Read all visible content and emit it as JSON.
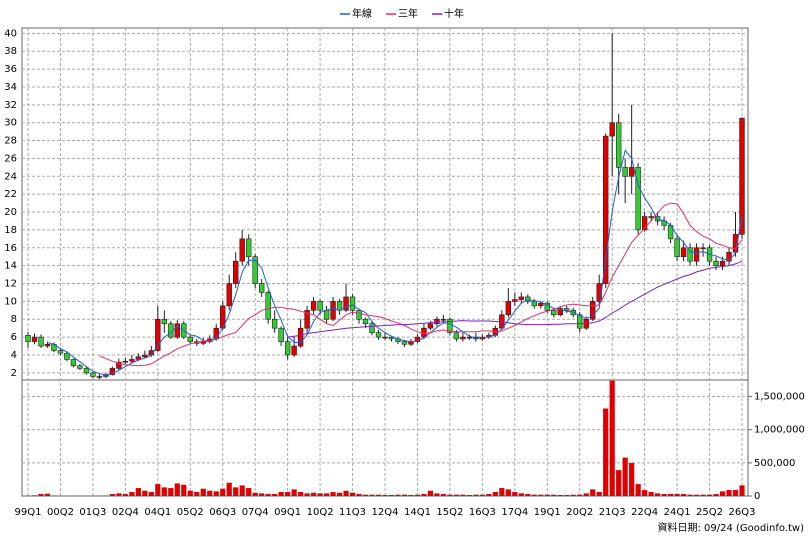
{
  "chart_data": {
    "type": "candlestick",
    "legend_position": "top",
    "categories": [
      "99Q1",
      null,
      null,
      null,
      null,
      "00Q2",
      null,
      null,
      null,
      null,
      "01Q3",
      null,
      null,
      null,
      null,
      "02Q4",
      null,
      null,
      null,
      null,
      "04Q1",
      null,
      null,
      null,
      null,
      "05Q2",
      null,
      null,
      null,
      null,
      "06Q3",
      null,
      null,
      null,
      null,
      "07Q4",
      null,
      null,
      null,
      null,
      "09Q1",
      null,
      null,
      null,
      null,
      "10Q2",
      null,
      null,
      null,
      null,
      "11Q3",
      null,
      null,
      null,
      null,
      "12Q4",
      null,
      null,
      null,
      null,
      "14Q1",
      null,
      null,
      null,
      null,
      "15Q2",
      null,
      null,
      null,
      null,
      "16Q3",
      null,
      null,
      null,
      null,
      "17Q4",
      null,
      null,
      null,
      null,
      "19Q1",
      null,
      null,
      null,
      null,
      "20Q2",
      null,
      null,
      null,
      null,
      "21Q3",
      null,
      null,
      null,
      null,
      "22Q4",
      null,
      null,
      null,
      null,
      "24Q1",
      null,
      null,
      null,
      null,
      "25Q2",
      null,
      null,
      null,
      null,
      "26Q3"
    ],
    "open": [
      6.2,
      5.5,
      6,
      5,
      5.2,
      4.5,
      4.2,
      3.5,
      2.8,
      2.5,
      2,
      1.6,
      1.6,
      1.8,
      2.5,
      3.2,
      3.3,
      3.5,
      3.8,
      4,
      4.5,
      8,
      7.5,
      6,
      7.5,
      6,
      5.5,
      5.3,
      5.5,
      5.8,
      7,
      9.5,
      12,
      14.5,
      17,
      15,
      12,
      11,
      8,
      7,
      5.5,
      4,
      5,
      7,
      9,
      10,
      9,
      8,
      10,
      9,
      10.5,
      9,
      8,
      7.5,
      6.5,
      6,
      6,
      5.8,
      5.5,
      5.2,
      5.5,
      6,
      7,
      7.5,
      8,
      8,
      6.5,
      5.8,
      6,
      6,
      5.8,
      6,
      6.2,
      7,
      8.5,
      10,
      10.2,
      10.5,
      10,
      9.5,
      9.8,
      9,
      8.5,
      9.2,
      9,
      8.5,
      7,
      8,
      10,
      12,
      28.5,
      30,
      25,
      24,
      25,
      18,
      19.5,
      19.5,
      19,
      18.5,
      17,
      15,
      16,
      14.5,
      16,
      16,
      14.5,
      14,
      14.5,
      15.5,
      17.5
    ],
    "high": [
      6.6,
      6.4,
      6.3,
      5.5,
      5.4,
      4.8,
      4.4,
      3.6,
      3,
      2.7,
      2.1,
      1.9,
      2,
      2.7,
      3.6,
      3.7,
      4,
      4.2,
      4.5,
      5,
      9.5,
      9,
      7.8,
      7.9,
      7.8,
      6.2,
      5.8,
      5.9,
      6.2,
      7.5,
      10,
      13,
      15.5,
      18,
      17.5,
      15.3,
      12.5,
      11.2,
      9,
      7.2,
      6,
      6,
      8,
      9.5,
      10.5,
      10.2,
      9.5,
      10.5,
      10.3,
      12,
      10.8,
      9.2,
      8.2,
      7.8,
      6.8,
      6.5,
      6.1,
      6,
      5.7,
      5.8,
      6.3,
      7.5,
      7.8,
      8.3,
      8.5,
      8.2,
      6.8,
      6.5,
      6.3,
      6.5,
      6.3,
      6.5,
      7.3,
      9,
      11.5,
      11,
      11,
      10.8,
      10.3,
      10,
      10,
      9.3,
      9.5,
      9.5,
      9.3,
      8.8,
      8.3,
      10.5,
      13,
      28.8,
      40,
      31,
      26,
      32,
      25.5,
      20,
      20,
      20,
      19.5,
      18.8,
      17.5,
      16.8,
      16.5,
      16.5,
      16.5,
      16.3,
      15,
      15,
      16,
      20,
      30.6
    ],
    "low": [
      4.8,
      5.2,
      4.8,
      4.8,
      4.3,
      4,
      3.3,
      2.6,
      2.3,
      1.8,
      1.4,
      1.3,
      1.4,
      1.7,
      2.3,
      3,
      3.1,
      3.3,
      3.6,
      3.8,
      4.3,
      6.5,
      5.8,
      5.8,
      5.8,
      5.2,
      5,
      5.1,
      5.3,
      5.6,
      6.8,
      9,
      11.5,
      14,
      14,
      11.5,
      10.5,
      7.5,
      6.5,
      5,
      3.5,
      3.8,
      4.8,
      6.5,
      8.5,
      8.5,
      7.5,
      7.8,
      8.5,
      8.8,
      8.5,
      7.5,
      7,
      6.2,
      5.7,
      5.7,
      5.5,
      5.2,
      4.9,
      5,
      5.3,
      5.8,
      6.8,
      7.2,
      7.5,
      6.2,
      5.5,
      5.5,
      5.7,
      5.5,
      5.6,
      5.8,
      6,
      6.8,
      8.2,
      9.5,
      9.8,
      9.7,
      9.2,
      9.2,
      8.7,
      8.2,
      8.3,
      8.7,
      8.2,
      6.5,
      6.8,
      7.8,
      9.5,
      11.5,
      24,
      22,
      21,
      22,
      17.5,
      17.8,
      19,
      18.5,
      18,
      16.5,
      14.5,
      14.5,
      14,
      14,
      15,
      14,
      13.5,
      13.5,
      14,
      15,
      17
    ],
    "close": [
      5.5,
      6,
      5,
      5.2,
      4.5,
      4.2,
      3.5,
      2.8,
      2.5,
      2,
      1.6,
      1.6,
      1.8,
      2.5,
      3.2,
      3.3,
      3.5,
      3.8,
      4,
      4.5,
      8,
      7.5,
      6,
      7.5,
      6,
      5.5,
      5.3,
      5.5,
      5.8,
      7,
      9.5,
      12,
      14.5,
      17,
      15,
      12,
      11,
      8,
      7,
      5.5,
      4,
      5,
      7,
      9,
      10,
      9,
      8,
      10,
      9,
      10.5,
      9,
      8,
      7.5,
      6.5,
      6,
      6,
      5.8,
      5.5,
      5.2,
      5.5,
      6,
      7,
      7.5,
      8,
      8,
      6.5,
      5.8,
      6,
      6,
      5.8,
      6,
      6.2,
      7,
      8.5,
      10,
      10.2,
      10.5,
      10,
      9.5,
      9.8,
      9,
      8.5,
      9.2,
      9,
      8.5,
      7,
      8,
      10,
      12,
      28.5,
      30,
      25,
      24,
      25,
      18,
      19.5,
      19.5,
      19,
      18.5,
      17,
      15,
      16,
      14.5,
      16,
      16,
      14.5,
      14,
      14.5,
      15.5,
      17.5,
      30.5
    ],
    "up_color": "#e00000",
    "down_color": "#33cc33",
    "ylim": [
      1.2,
      40.6
    ],
    "yticks": [
      2,
      4,
      6,
      8,
      10,
      12,
      14,
      16,
      18,
      20,
      22,
      24,
      26,
      28,
      30,
      32,
      34,
      36,
      38,
      40
    ],
    "grid": true,
    "series": [
      {
        "name": "年線",
        "color": "#1f5fd6",
        "values": [
          null,
          null,
          null,
          5.4,
          5.2,
          4.7,
          4.35,
          3.75,
          3.25,
          2.7,
          2.2,
          1.9,
          1.75,
          1.9,
          2.3,
          2.7,
          3.1,
          3.45,
          3.65,
          3.95,
          5.1,
          6,
          6.5,
          7.25,
          6.75,
          6.25,
          6.1,
          5.6,
          5.5,
          5.9,
          6.95,
          8.6,
          10.75,
          13.25,
          14.6,
          14.6,
          13.75,
          11.5,
          9.5,
          7.9,
          6.1,
          5.4,
          5.4,
          6.25,
          7.75,
          8.75,
          9,
          9.25,
          9,
          9.4,
          9.6,
          9.1,
          8.75,
          7.75,
          7,
          6.5,
          6.1,
          5.8,
          5.6,
          5.5,
          5.55,
          5.9,
          6.5,
          7.1,
          7.6,
          7.5,
          7.1,
          6.6,
          6.1,
          5.9,
          5.95,
          6,
          6.25,
          6.9,
          7.9,
          8.9,
          9.8,
          10.2,
          10.05,
          9.95,
          9.6,
          9.2,
          9.1,
          8.9,
          8.8,
          8.4,
          8.1,
          8.4,
          9.25,
          14.6,
          20.1,
          23.9,
          26.9,
          26,
          23,
          21.6,
          20.5,
          19.1,
          19.1,
          18.5,
          17.4,
          16.6,
          15.6,
          15.4,
          15.6,
          15.25,
          15.1,
          14.75,
          14.6,
          15.4,
          19.5
        ]
      },
      {
        "name": "三年",
        "color": "#e0306a",
        "values": [
          null,
          null,
          null,
          null,
          null,
          null,
          null,
          null,
          null,
          null,
          null,
          3.9,
          3.6,
          3.3,
          3.1,
          2.9,
          2.85,
          2.8,
          2.85,
          3,
          3.45,
          3.9,
          4.25,
          4.7,
          5,
          5.25,
          5.4,
          5.55,
          5.65,
          5.75,
          6.05,
          6.3,
          6.5,
          7.3,
          8.1,
          8.5,
          9,
          9.2,
          9.35,
          9.35,
          9.2,
          9.1,
          8.9,
          8.7,
          8.5,
          8,
          7.5,
          7.3,
          7.9,
          8.5,
          8.8,
          8.7,
          8.5,
          8.4,
          8.3,
          8.1,
          7.8,
          7.6,
          7.3,
          6.9,
          6.6,
          6.4,
          6.5,
          6.7,
          6.8,
          6.7,
          6.6,
          6.6,
          6.6,
          6.6,
          6.7,
          6.7,
          6.6,
          6.7,
          7,
          7.3,
          7.7,
          8.1,
          8.4,
          8.7,
          8.9,
          9.1,
          9.4,
          9.6,
          9.7,
          9.6,
          9.5,
          9.5,
          9.6,
          11,
          12.7,
          14,
          15.3,
          16.6,
          17.4,
          18.2,
          19,
          19.9,
          20.7,
          21,
          20.9,
          19.8,
          18.5,
          17.8,
          17.3,
          17,
          16.5,
          16.3,
          16,
          15.9,
          16.9
        ]
      },
      {
        "name": "十年",
        "color": "#7a22c8",
        "values": [
          null,
          null,
          null,
          null,
          null,
          null,
          null,
          null,
          null,
          null,
          null,
          null,
          null,
          null,
          null,
          null,
          null,
          null,
          null,
          null,
          null,
          null,
          null,
          null,
          null,
          null,
          null,
          null,
          null,
          null,
          null,
          null,
          null,
          null,
          null,
          null,
          null,
          null,
          null,
          null,
          6,
          6.1,
          6.2,
          6.4,
          6.5,
          6.6,
          6.7,
          6.8,
          6.9,
          7,
          7.05,
          7.1,
          7.15,
          7.2,
          7.25,
          7.3,
          7.35,
          7.4,
          7.4,
          7.45,
          7.5,
          7.55,
          7.6,
          7.65,
          7.7,
          7.75,
          7.8,
          7.85,
          7.8,
          7.8,
          7.8,
          7.8,
          7.75,
          7.7,
          7.6,
          7.5,
          7.45,
          7.4,
          7.4,
          7.4,
          7.4,
          7.45,
          7.45,
          7.5,
          7.5,
          7.5,
          7.55,
          7.6,
          7.8,
          8.2,
          8.7,
          9.1,
          9.6,
          10,
          10.4,
          10.8,
          11.2,
          11.6,
          11.9,
          12.2,
          12.5,
          12.8,
          13,
          13.3,
          13.5,
          13.7,
          13.8,
          13.9,
          14,
          14.2,
          14.5
        ]
      }
    ],
    "volume": {
      "color": "#e00000",
      "values": [
        5000,
        10000,
        30000,
        35000,
        5000,
        3000,
        3000,
        2000,
        2000,
        2000,
        2000,
        3000,
        5000,
        30000,
        40000,
        30000,
        60000,
        120000,
        80000,
        60000,
        180000,
        130000,
        120000,
        190000,
        170000,
        80000,
        60000,
        110000,
        80000,
        70000,
        110000,
        200000,
        130000,
        160000,
        120000,
        50000,
        40000,
        30000,
        30000,
        60000,
        60000,
        100000,
        60000,
        40000,
        50000,
        40000,
        40000,
        60000,
        50000,
        80000,
        50000,
        30000,
        20000,
        20000,
        20000,
        15000,
        15000,
        20000,
        20000,
        15000,
        20000,
        30000,
        80000,
        40000,
        30000,
        20000,
        20000,
        20000,
        15000,
        20000,
        20000,
        30000,
        60000,
        120000,
        100000,
        60000,
        40000,
        30000,
        20000,
        20000,
        20000,
        20000,
        15000,
        15000,
        20000,
        20000,
        40000,
        100000,
        60000,
        1320000,
        1740000,
        390000,
        580000,
        500000,
        180000,
        90000,
        60000,
        40000,
        30000,
        30000,
        30000,
        30000,
        20000,
        20000,
        20000,
        20000,
        30000,
        70000,
        90000,
        90000,
        160000
      ],
      "ylim": [
        0,
        1750000
      ],
      "yticks": [
        0,
        {
          "value": 500000,
          "label": "500,000"
        },
        {
          "value": 1000000,
          "label": "1,000,000"
        },
        {
          "value": 1500000,
          "label": "1,500,000"
        }
      ]
    },
    "source": "資料日期: 09/24 (Goodinfo.tw)"
  }
}
